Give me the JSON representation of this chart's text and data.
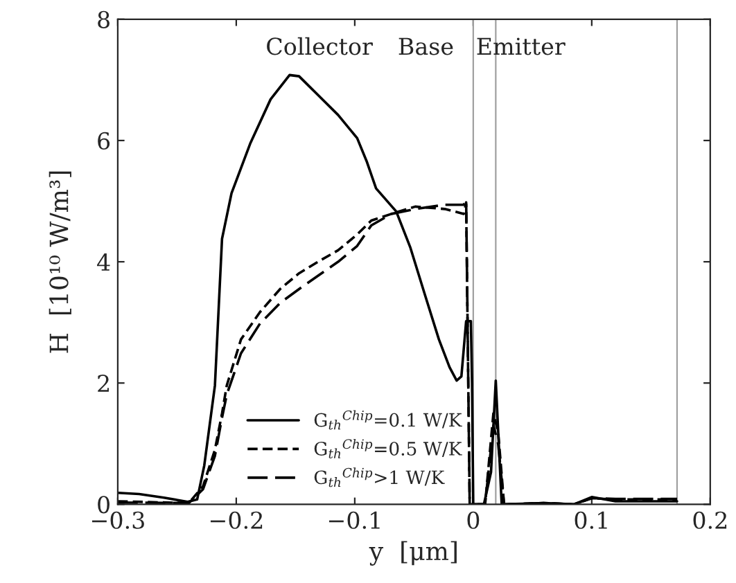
{
  "chart_data": {
    "type": "line",
    "xlabel": "y  [μm]",
    "ylabel": "H  [10¹⁰ W/m³]",
    "xlim": [
      -0.3,
      0.2
    ],
    "ylim": [
      0,
      8
    ],
    "xticks": [
      {
        "value": -0.3,
        "label": "−0.3"
      },
      {
        "value": -0.2,
        "label": "−0.2"
      },
      {
        "value": -0.1,
        "label": "−0.1"
      },
      0,
      0.1,
      0.2
    ],
    "yticks": [
      0,
      2,
      4,
      6,
      8
    ],
    "grid": false,
    "legend": "bottom",
    "series": [
      {
        "name": "G$_{th}$$^{Chip}$=0.1 W/K",
        "color": "#000000",
        "line_style": "solid",
        "x": [
          -0.3,
          -0.282,
          -0.261,
          -0.241,
          -0.233,
          -0.227,
          -0.218,
          -0.212,
          -0.204,
          -0.188,
          -0.171,
          -0.155,
          -0.147,
          -0.131,
          -0.114,
          -0.098,
          -0.09,
          -0.082,
          -0.065,
          -0.053,
          -0.041,
          -0.029,
          -0.02,
          -0.014,
          -0.01,
          -0.006,
          -0.002,
          -0.001,
          0.0,
          0.009,
          0.015,
          0.019,
          0.024,
          0.06,
          0.085,
          0.1,
          0.12,
          0.172
        ],
        "values": [
          0.19,
          0.17,
          0.11,
          0.04,
          0.08,
          0.64,
          1.96,
          4.38,
          5.13,
          5.96,
          6.68,
          7.08,
          7.06,
          6.75,
          6.42,
          6.04,
          5.66,
          5.21,
          4.83,
          4.23,
          3.47,
          2.72,
          2.26,
          2.04,
          2.11,
          3.02,
          3.02,
          2.0,
          0,
          0,
          0.53,
          2.04,
          0,
          0.02,
          0,
          0.12,
          0.05,
          0.05
        ]
      },
      {
        "name": "G$_{th}$$^{Chip}$=0.5 W/K",
        "color": "#000000",
        "line_style": "dashed",
        "x": [
          -0.3,
          -0.24,
          -0.228,
          -0.218,
          -0.212,
          -0.208,
          -0.196,
          -0.18,
          -0.163,
          -0.147,
          -0.131,
          -0.114,
          -0.098,
          -0.086,
          -0.069,
          -0.049,
          -0.024,
          -0.008,
          -0.006,
          -0.003,
          0.0,
          0.01,
          0.017,
          0.021,
          0.026,
          0.06,
          0.085,
          0.1,
          0.12,
          0.172
        ],
        "values": [
          0.05,
          0.02,
          0.3,
          0.9,
          1.5,
          1.96,
          2.72,
          3.17,
          3.55,
          3.81,
          4.0,
          4.19,
          4.45,
          4.68,
          4.79,
          4.91,
          4.87,
          4.79,
          4.98,
          0,
          0,
          0,
          1.5,
          1.2,
          0,
          0.02,
          0,
          0.1,
          0.08,
          0.08
        ]
      },
      {
        "name": "G$_{th}$$^{Chip}$>1 W/K",
        "color": "#000000",
        "line_style": "longdash",
        "x": [
          -0.3,
          -0.24,
          -0.228,
          -0.218,
          -0.212,
          -0.208,
          -0.196,
          -0.18,
          -0.163,
          -0.147,
          -0.131,
          -0.114,
          -0.098,
          -0.086,
          -0.069,
          -0.049,
          -0.024,
          -0.008,
          -0.006,
          -0.003,
          0.0,
          0.01,
          0.017,
          0.021,
          0.026,
          0.06,
          0.085,
          0.1,
          0.12,
          0.172
        ],
        "values": [
          0.03,
          0.02,
          0.25,
          0.8,
          1.43,
          1.81,
          2.49,
          2.98,
          3.32,
          3.55,
          3.77,
          4.0,
          4.26,
          4.6,
          4.79,
          4.87,
          4.94,
          4.94,
          5.02,
          0,
          0,
          0,
          1.3,
          1.0,
          0,
          0.02,
          0,
          0.1,
          0.09,
          0.09
        ]
      }
    ],
    "ref_lines": [
      {
        "axis": "x",
        "value": 0.0,
        "color": "#a0a0a0"
      },
      {
        "axis": "x",
        "value": 0.019,
        "color": "#a0a0a0"
      },
      {
        "axis": "x",
        "value": 0.172,
        "color": "#a0a0a0"
      }
    ],
    "annotations": [
      "Collector",
      "Base",
      "Emitter"
    ]
  }
}
